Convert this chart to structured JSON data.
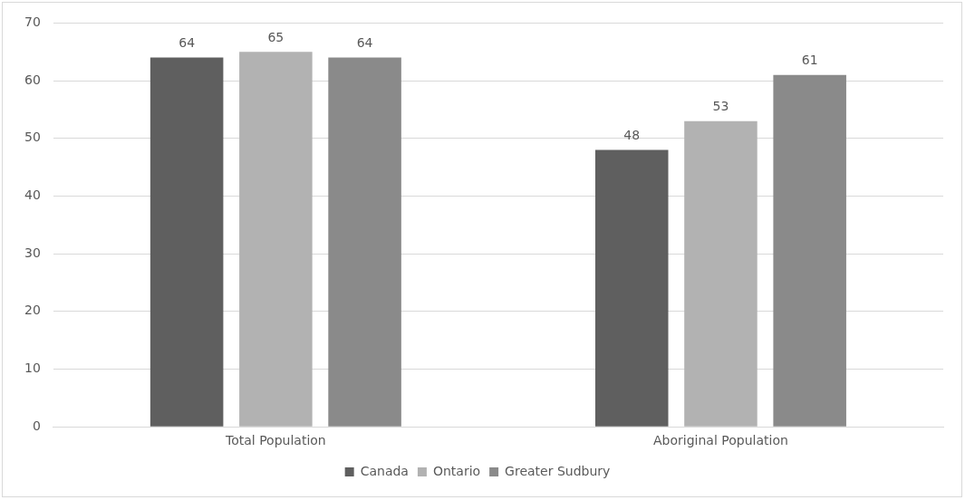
{
  "chart_data": {
    "type": "bar",
    "categories": [
      "Total Population",
      "Aboriginal Population"
    ],
    "series": [
      {
        "name": "Canada",
        "color": "#5f5f5f",
        "values": [
          64,
          48
        ]
      },
      {
        "name": "Ontario",
        "color": "#b2b2b2",
        "values": [
          65,
          53
        ]
      },
      {
        "name": "Greater Sudbury",
        "color": "#8a8a8a",
        "values": [
          64,
          61
        ]
      }
    ],
    "ylim": [
      0,
      70
    ],
    "yticks": [
      0,
      10,
      20,
      30,
      40,
      50,
      60,
      70
    ],
    "grid": "y",
    "legend": "bottom",
    "data_labels": true
  }
}
